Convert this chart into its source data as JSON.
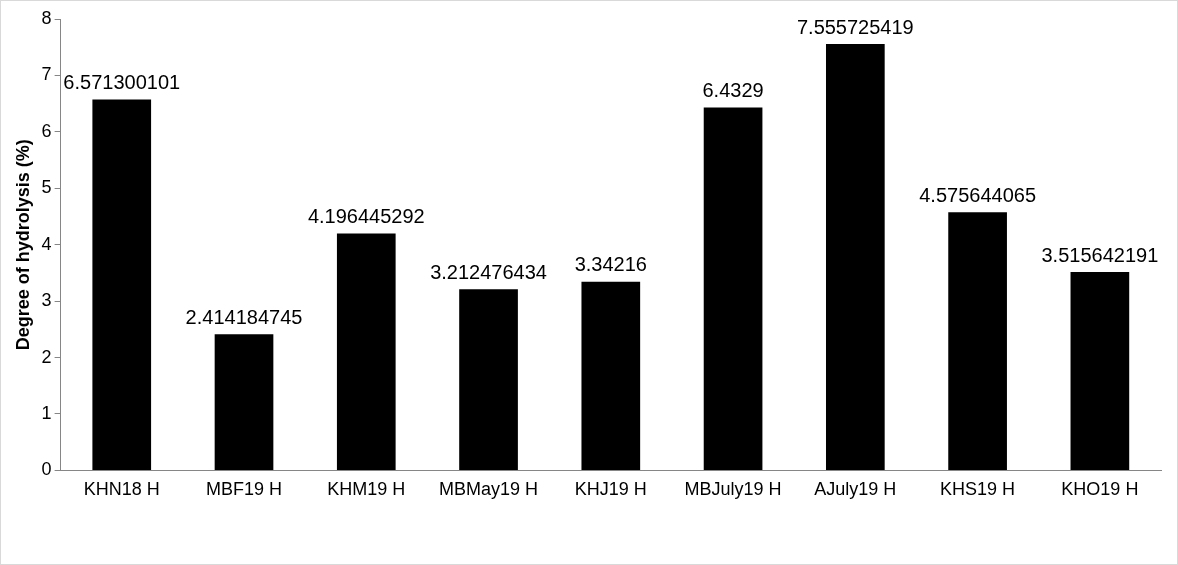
{
  "chart_data": {
    "type": "bar",
    "ylabel": "Degree of hydrolysis (%)",
    "categories": [
      "KHN18 H",
      "MBF19 H",
      "KHM19 H",
      "MBMay19 H",
      "KHJ19 H",
      "MBJuly19 H",
      "AJuly19 H",
      "KHS19 H",
      "KHO19 H"
    ],
    "values": [
      6.571300101,
      2.414184745,
      4.196445292,
      3.212476434,
      3.34216,
      6.4329,
      7.555725419,
      4.575644065,
      3.515642191
    ],
    "color": "#000000",
    "ylim": [
      0,
      8
    ],
    "yticks": [
      0,
      1,
      2,
      3,
      4,
      5,
      6,
      7,
      8
    ],
    "grid": false,
    "legend": false,
    "data_labels": true
  }
}
